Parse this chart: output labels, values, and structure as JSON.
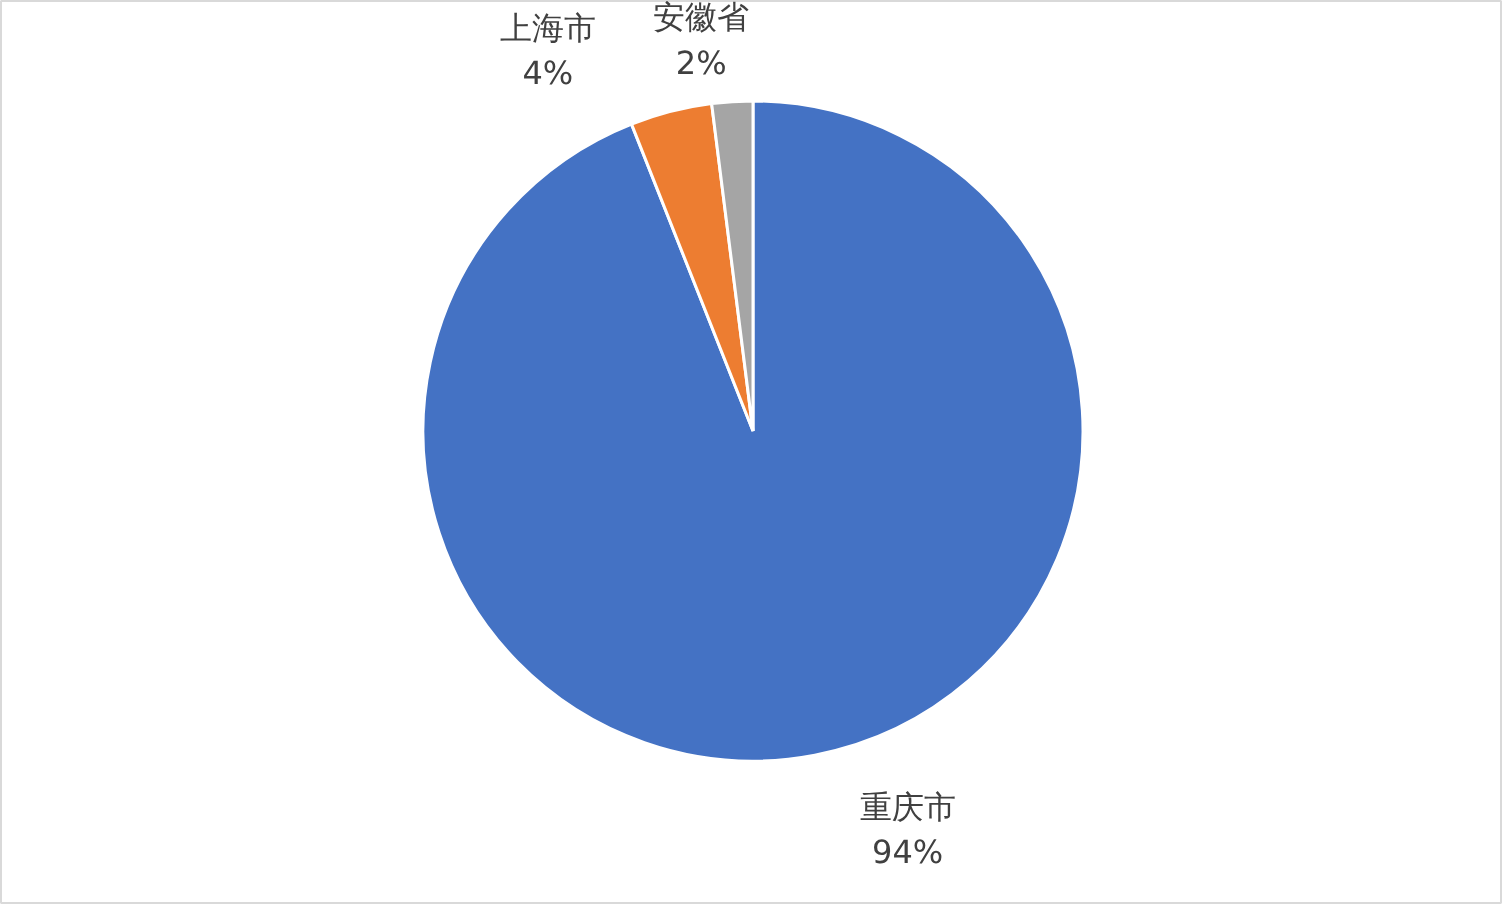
{
  "chart_data": {
    "type": "pie",
    "categories": [
      "重庆市",
      "上海市",
      "安徽省"
    ],
    "values": [
      94,
      4,
      2
    ],
    "colors": [
      "#4472c4",
      "#ed7d31",
      "#a5a5a5"
    ],
    "value_labels": [
      "94%",
      "4%",
      "2%"
    ]
  }
}
